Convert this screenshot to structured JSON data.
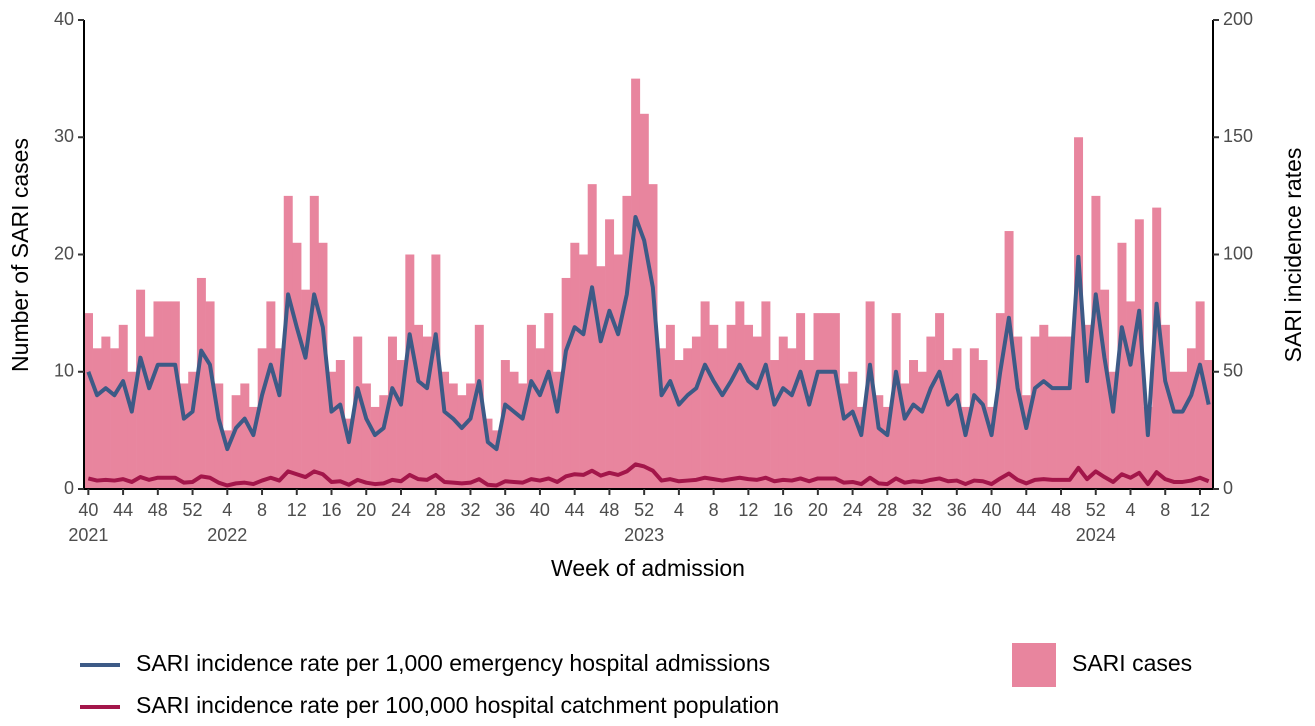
{
  "chart_data": {
    "type": "combo",
    "x_label": "Week of admission",
    "y_label": "Number of SARI cases",
    "y2_label": "SARI incidence rates",
    "ylim": [
      0,
      40
    ],
    "yticks": [
      0,
      10,
      20,
      30,
      40
    ],
    "y2lim": [
      0,
      200
    ],
    "y2ticks": [
      0,
      50,
      100,
      150,
      200
    ],
    "categories": [
      "40",
      null,
      null,
      null,
      "44",
      null,
      null,
      null,
      "48",
      null,
      null,
      null,
      "52",
      null,
      null,
      null,
      "4",
      null,
      null,
      null,
      "8",
      null,
      null,
      null,
      "12",
      null,
      null,
      null,
      "16",
      null,
      null,
      null,
      "20",
      null,
      null,
      null,
      "24",
      null,
      null,
      null,
      "28",
      null,
      null,
      null,
      "32",
      null,
      null,
      null,
      "36",
      null,
      null,
      null,
      "40",
      null,
      null,
      null,
      "44",
      null,
      null,
      null,
      "48",
      null,
      null,
      null,
      "52",
      null,
      null,
      null,
      "4",
      null,
      null,
      null,
      "8",
      null,
      null,
      null,
      "12",
      null,
      null,
      null,
      "16",
      null,
      null,
      null,
      "20",
      null,
      null,
      null,
      "24",
      null,
      null,
      null,
      "28",
      null,
      null,
      null,
      "32",
      null,
      null,
      null,
      "36",
      null,
      null,
      null,
      "40",
      null,
      null,
      null,
      "44",
      null,
      null,
      null,
      "48",
      null,
      null,
      null,
      "52",
      null,
      null,
      null,
      "4",
      null,
      null,
      null,
      "8",
      null,
      null,
      null,
      "12",
      null
    ],
    "category_years": [
      "2021",
      null,
      null,
      null,
      null,
      null,
      null,
      null,
      null,
      null,
      null,
      null,
      null,
      null,
      null,
      null,
      "2022",
      null,
      null,
      null,
      null,
      null,
      null,
      null,
      null,
      null,
      null,
      null,
      null,
      null,
      null,
      null,
      null,
      null,
      null,
      null,
      null,
      null,
      null,
      null,
      null,
      null,
      null,
      null,
      null,
      null,
      null,
      null,
      null,
      null,
      null,
      null,
      null,
      null,
      null,
      null,
      null,
      null,
      null,
      null,
      null,
      null,
      null,
      null,
      "2023",
      null,
      null,
      null,
      null,
      null,
      null,
      null,
      null,
      null,
      null,
      null,
      null,
      null,
      null,
      null,
      null,
      null,
      null,
      null,
      null,
      null,
      null,
      null,
      null,
      null,
      null,
      null,
      null,
      null,
      null,
      null,
      null,
      null,
      null,
      null,
      null,
      null,
      null,
      null,
      null,
      null,
      null,
      null,
      null,
      null,
      null,
      null,
      null,
      null,
      null,
      null,
      "2024",
      null,
      null,
      null,
      null,
      null,
      null,
      null,
      null,
      null
    ],
    "series": [
      {
        "name": "SARI cases",
        "mark": "bar",
        "axis": "y",
        "color": "#e8859e",
        "values": [
          15,
          12,
          13,
          12,
          14,
          10,
          17,
          13,
          16,
          16,
          16,
          9,
          10,
          18,
          16,
          9,
          5,
          8,
          9,
          7,
          12,
          16,
          12,
          25,
          21,
          17,
          25,
          21,
          10,
          11,
          6,
          13,
          9,
          7,
          8,
          13,
          11,
          20,
          14,
          13,
          20,
          10,
          9,
          8,
          9,
          14,
          6,
          5,
          11,
          10,
          9,
          14,
          12,
          15,
          10,
          18,
          21,
          20,
          26,
          19,
          23,
          20,
          25,
          35,
          32,
          26,
          12,
          14,
          11,
          12,
          13,
          16,
          14,
          12,
          14,
          16,
          14,
          13,
          16,
          11,
          13,
          12,
          15,
          11,
          15,
          15,
          15,
          9,
          10,
          7,
          16,
          8,
          7,
          15,
          9,
          11,
          10,
          13,
          15,
          11,
          12,
          7,
          12,
          11,
          7,
          15,
          22,
          13,
          8,
          13,
          14,
          13,
          13,
          13,
          30,
          14,
          25,
          17,
          10,
          21,
          16,
          23,
          7,
          24,
          14,
          10,
          10,
          12,
          16,
          11
        ]
      },
      {
        "name": "SARI incidence rate per 1,000 emergency hospital admissions",
        "mark": "line",
        "axis": "y2",
        "color": "#3d5a86",
        "values": [
          50,
          40,
          43,
          40,
          46,
          33,
          56,
          43,
          53,
          53,
          53,
          30,
          33,
          59,
          53,
          30,
          17,
          26,
          30,
          23,
          40,
          53,
          40,
          83,
          69,
          56,
          83,
          69,
          33,
          36,
          20,
          43,
          30,
          23,
          26,
          43,
          36,
          66,
          46,
          43,
          66,
          33,
          30,
          26,
          30,
          46,
          20,
          17,
          36,
          33,
          30,
          46,
          40,
          50,
          33,
          59,
          69,
          66,
          86,
          63,
          76,
          66,
          83,
          116,
          106,
          86,
          40,
          46,
          36,
          40,
          43,
          53,
          46,
          40,
          46,
          53,
          46,
          43,
          53,
          36,
          43,
          40,
          50,
          36,
          50,
          50,
          50,
          30,
          33,
          23,
          53,
          26,
          23,
          50,
          30,
          36,
          33,
          43,
          50,
          36,
          40,
          23,
          40,
          36,
          23,
          50,
          73,
          43,
          26,
          43,
          46,
          43,
          43,
          43,
          99,
          46,
          83,
          56,
          33,
          69,
          53,
          76,
          23,
          79,
          46,
          33,
          33,
          40,
          53,
          36
        ]
      },
      {
        "name": "SARI incidence rate per 100,000 hospital catchment population",
        "mark": "line",
        "axis": "y2",
        "color": "#a3164a",
        "values": [
          4.5,
          3.6,
          3.9,
          3.6,
          4.2,
          3,
          5.1,
          3.9,
          4.8,
          4.8,
          4.8,
          2.7,
          3,
          5.4,
          4.8,
          2.7,
          1.5,
          2.4,
          2.7,
          2.1,
          3.6,
          4.8,
          3.6,
          7.5,
          6.3,
          5.1,
          7.5,
          6.3,
          3,
          3.3,
          1.8,
          3.9,
          2.7,
          2.1,
          2.4,
          3.9,
          3.3,
          6,
          4.2,
          3.9,
          6,
          3,
          2.7,
          2.4,
          2.7,
          4.2,
          1.8,
          1.5,
          3.3,
          3,
          2.7,
          4.2,
          3.6,
          4.5,
          3,
          5.4,
          6.3,
          6,
          7.8,
          5.7,
          6.9,
          6,
          7.5,
          10.5,
          9.6,
          7.8,
          3.6,
          4.2,
          3.3,
          3.6,
          3.9,
          4.8,
          4.2,
          3.6,
          4.2,
          4.8,
          4.2,
          3.9,
          4.8,
          3.3,
          3.9,
          3.6,
          4.5,
          3.3,
          4.5,
          4.5,
          4.5,
          2.7,
          3,
          2.1,
          4.8,
          2.4,
          2.1,
          4.5,
          2.7,
          3.3,
          3,
          3.9,
          4.5,
          3.3,
          3.6,
          2.1,
          3.6,
          3.3,
          2.1,
          4.5,
          6.6,
          3.9,
          2.4,
          3.9,
          4.2,
          3.9,
          3.9,
          3.9,
          9,
          4.2,
          7.5,
          5.1,
          3,
          6.3,
          4.8,
          6.9,
          2.1,
          7.2,
          4.2,
          3,
          3,
          3.6,
          4.8,
          3.3
        ]
      }
    ]
  }
}
